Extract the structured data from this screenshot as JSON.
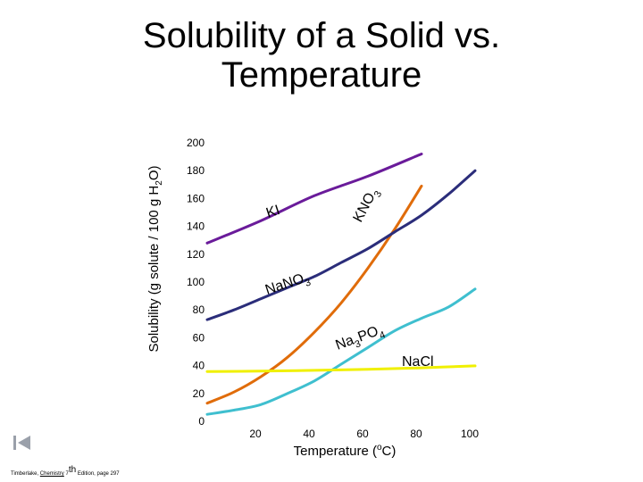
{
  "chart_data": {
    "type": "line",
    "title": "Solubility of a Solid vs. Temperature",
    "xlabel_prefix": "Temperature (",
    "xlabel_sup": "o",
    "xlabel_suffix": "C)",
    "ylabel_prefix": "Solubility (g solute / 100 g H",
    "ylabel_sub": "2",
    "ylabel_suffix": "O)",
    "x_ticks": [
      20,
      40,
      60,
      80,
      100
    ],
    "y_ticks": [
      0,
      20,
      40,
      60,
      80,
      100,
      120,
      140,
      160,
      180,
      200
    ],
    "xlim": [
      0,
      100
    ],
    "ylim": [
      0,
      200
    ],
    "grid": false,
    "series": [
      {
        "label_base": "KI",
        "label_sub": "",
        "color": "#6a1b9a",
        "x": [
          0,
          20,
          40,
          60,
          80
        ],
        "y": [
          128,
          144,
          162,
          176,
          192
        ]
      },
      {
        "label_base": "KNO",
        "label_sub": "3",
        "color": "#e06c0a",
        "x": [
          0,
          10,
          20,
          30,
          40,
          50,
          60,
          70,
          80
        ],
        "y": [
          13,
          21,
          32,
          46,
          64,
          85,
          110,
          138,
          169
        ]
      },
      {
        "label_base": "NaNO",
        "label_sub": "3",
        "color": "#2b2d7a",
        "x": [
          0,
          10,
          20,
          30,
          40,
          50,
          60,
          70,
          80,
          90,
          100
        ],
        "y": [
          73,
          80,
          88,
          96,
          104,
          114,
          124,
          136,
          148,
          163,
          180
        ]
      },
      {
        "label_base": "Na",
        "label_sub": "3",
        "label_mid": "PO",
        "label_sub2": "4",
        "color": "#3fbfcf",
        "x": [
          0,
          10,
          20,
          30,
          40,
          50,
          60,
          70,
          80,
          90,
          100
        ],
        "y": [
          5,
          8,
          12,
          20,
          29,
          41,
          53,
          65,
          74,
          82,
          95
        ]
      },
      {
        "label_base": "NaCl",
        "label_sub": "",
        "color": "#f0f000",
        "x": [
          0,
          20,
          40,
          60,
          80,
          100
        ],
        "y": [
          35.7,
          36,
          36.6,
          37.3,
          38.4,
          39.8
        ]
      }
    ]
  },
  "footer": {
    "author": "Timberlake, ",
    "book": "Chemistry",
    "edition": " 7",
    "edition_sup": "th",
    "rest": " Edition, page 297"
  }
}
